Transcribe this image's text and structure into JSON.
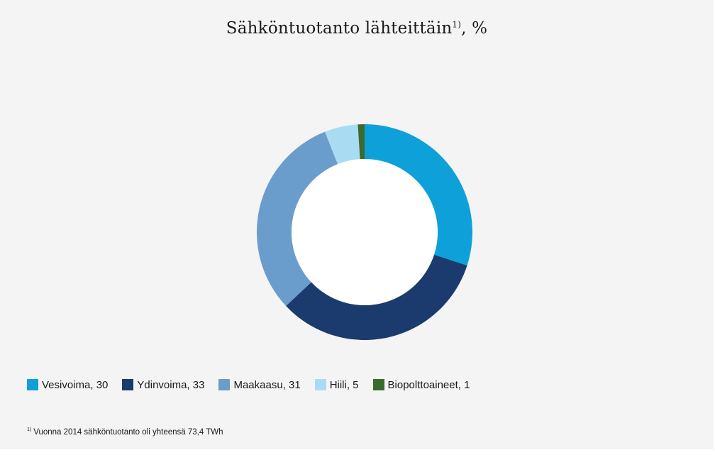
{
  "chart_data": {
    "type": "pie",
    "title": "Sähköntuotanto lähteittäin",
    "title_footnote_mark": "1)",
    "title_suffix": ", %",
    "legend_position": "bottom",
    "slices": [
      {
        "label": "Vesivoima",
        "value": 30,
        "display": "Vesivoima, 30",
        "color": "#0ea1d9"
      },
      {
        "label": "Ydinvoima",
        "value": 33,
        "display": "Ydinvoima, 33",
        "color": "#1b3a6d"
      },
      {
        "label": "Maakaasu",
        "value": 31,
        "display": "Maakaasu, 31",
        "color": "#6a9ccc"
      },
      {
        "label": "Hiili",
        "value": 5,
        "display": "Hiili, 5",
        "color": "#a9dcf3"
      },
      {
        "label": "Biopolttoaineet",
        "value": 1,
        "display": "Biopolttoaineet, 1",
        "color": "#3a6b2e"
      }
    ]
  },
  "footnote": {
    "mark": "1)",
    "text": "Vuonna 2014 sähköntuotanto oli yhteensä 73,4 TWh"
  }
}
